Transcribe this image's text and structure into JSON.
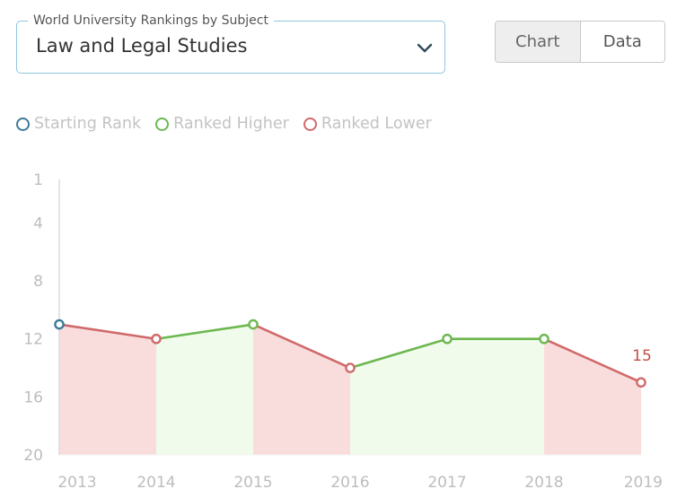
{
  "selector": {
    "label": "World University Rankings by Subject",
    "value": "Law and Legal Studies"
  },
  "view_toggle": {
    "chart_label": "Chart",
    "data_label": "Data",
    "active": "Chart"
  },
  "legend": [
    {
      "label": "Starting Rank",
      "color": "#3c7a99"
    },
    {
      "label": "Ranked Higher",
      "color": "#6cb84f"
    },
    {
      "label": "Ranked Lower",
      "color": "#d06a6a"
    }
  ],
  "colors": {
    "starting": "#3c7a99",
    "higher": "#6cb84f",
    "lower": "#d06a6a",
    "higher_fill": "#f0fbec",
    "lower_fill": "#f9dddd",
    "axis": "#dcdcdc",
    "tick_text": "#bdbdbd",
    "value_label": "#c0504a"
  },
  "chart_data": {
    "type": "line",
    "x": [
      "2013",
      "2014",
      "2015",
      "2016",
      "2017",
      "2018",
      "2019"
    ],
    "y": [
      11,
      12,
      11,
      14,
      12,
      12,
      15
    ],
    "y_ticks": [
      "1",
      "4",
      "8",
      "12",
      "16",
      "20"
    ],
    "ylim": [
      1,
      20
    ],
    "y_axis_reversed": true,
    "last_point_label": "15",
    "grid": false,
    "legend_position": "top-left"
  }
}
